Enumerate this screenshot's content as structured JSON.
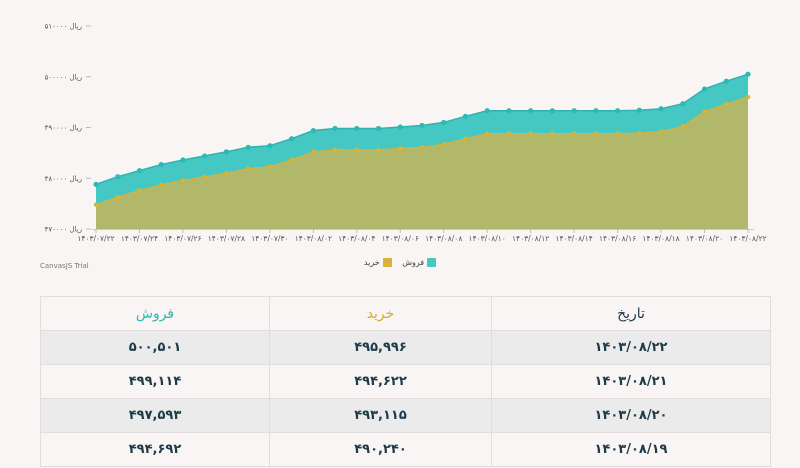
{
  "chart_data": {
    "type": "area",
    "x": [
      "۱۴۰۳/۰۷/۲۲",
      "۱۴۰۳/۰۷/۲۳",
      "۱۴۰۳/۰۷/۲۴",
      "۱۴۰۳/۰۷/۲۵",
      "۱۴۰۳/۰۷/۲۶",
      "۱۴۰۳/۰۷/۲۷",
      "۱۴۰۳/۰۷/۲۸",
      "۱۴۰۳/۰۷/۲۹",
      "۱۴۰۳/۰۷/۳۰",
      "۱۴۰۳/۰۸/۰۱",
      "۱۴۰۳/۰۸/۰۲",
      "۱۴۰۳/۰۸/۰۳",
      "۱۴۰۳/۰۸/۰۴",
      "۱۴۰۳/۰۸/۰۵",
      "۱۴۰۳/۰۸/۰۶",
      "۱۴۰۳/۰۸/۰۷",
      "۱۴۰۳/۰۸/۰۸",
      "۱۴۰۳/۰۸/۰۹",
      "۱۴۰۳/۰۸/۱۰",
      "۱۴۰۳/۰۸/۱۱",
      "۱۴۰۳/۰۸/۱۲",
      "۱۴۰۳/۰۸/۱۳",
      "۱۴۰۳/۰۸/۱۴",
      "۱۴۰۳/۰۸/۱۵",
      "۱۴۰۳/۰۸/۱۶",
      "۱۴۰۳/۰۸/۱۷",
      "۱۴۰۳/۰۸/۱۸",
      "۱۴۰۳/۰۸/۱۹",
      "۱۴۰۳/۰۸/۲۰",
      "۱۴۰۳/۰۸/۲۱",
      "۱۴۰۳/۰۸/۲۲"
    ],
    "x_tick_labels": [
      "۱۴۰۳/۰۷/۲۲",
      "۱۴۰۳/۰۷/۲۴",
      "۱۴۰۳/۰۷/۲۶",
      "۱۴۰۳/۰۷/۲۸",
      "۱۴۰۳/۰۷/۳۰",
      "۱۴۰۳/۰۸/۰۲",
      "۱۴۰۳/۰۸/۰۴",
      "۱۴۰۳/۰۸/۰۶",
      "۱۴۰۳/۰۸/۰۸",
      "۱۴۰۳/۰۸/۱۰",
      "۱۴۰۳/۰۸/۱۲",
      "۱۴۰۳/۰۸/۱۴",
      "۱۴۰۳/۰۸/۱۶",
      "۱۴۰۳/۰۸/۱۸",
      "۱۴۰۳/۰۸/۲۰",
      "۱۴۰۳/۰۸/۲۲"
    ],
    "y_ticks": [
      470000,
      480000,
      490000,
      500000,
      510000
    ],
    "y_tick_labels": [
      "۴۷۰۰۰۰ ریال",
      "۴۸۰۰۰۰ ریال",
      "۴۹۰۰۰۰ ریال",
      "۵۰۰۰۰۰ ریال",
      "۵۱۰۰۰۰ ریال"
    ],
    "ylim": [
      470000,
      510000
    ],
    "grid": false,
    "legend_position": "bottom-center",
    "series": [
      {
        "name": "فروش",
        "color": "#45c8c4",
        "values": [
          478800,
          480300,
          481500,
          482700,
          483600,
          484400,
          485200,
          486100,
          486400,
          487800,
          489400,
          489800,
          489800,
          489800,
          490100,
          490400,
          491000,
          492200,
          493300,
          493300,
          493300,
          493300,
          493300,
          493300,
          493300,
          493400,
          493700,
          494692,
          497593,
          499114,
          500501
        ]
      },
      {
        "name": "خرید",
        "color": "#b2b86a",
        "values": [
          474800,
          476300,
          477600,
          478700,
          479600,
          480300,
          481000,
          481900,
          482300,
          483600,
          485200,
          485600,
          485600,
          485600,
          485900,
          486100,
          486700,
          487800,
          488800,
          488800,
          488800,
          488800,
          488800,
          488800,
          488800,
          488900,
          489200,
          490240,
          493115,
          494622,
          495996
        ]
      }
    ]
  },
  "credit": "CanvasJS Trial",
  "table": {
    "headers": {
      "date": "تاریخ",
      "buy": "خرید",
      "sell": "فروش"
    },
    "header_colors": {
      "date": "#1d3b48",
      "buy": "#d9a928",
      "sell": "#2cb8b0"
    },
    "rows": [
      {
        "date": "۱۴۰۳/۰۸/۲۲",
        "buy": "۴۹۵,۹۹۶",
        "sell": "۵۰۰,۵۰۱"
      },
      {
        "date": "۱۴۰۳/۰۸/۲۱",
        "buy": "۴۹۴,۶۲۲",
        "sell": "۴۹۹,۱۱۴"
      },
      {
        "date": "۱۴۰۳/۰۸/۲۰",
        "buy": "۴۹۳,۱۱۵",
        "sell": "۴۹۷,۵۹۳"
      },
      {
        "date": "۱۴۰۳/۰۸/۱۹",
        "buy": "۴۹۰,۲۴۰",
        "sell": "۴۹۴,۶۹۲"
      }
    ]
  }
}
